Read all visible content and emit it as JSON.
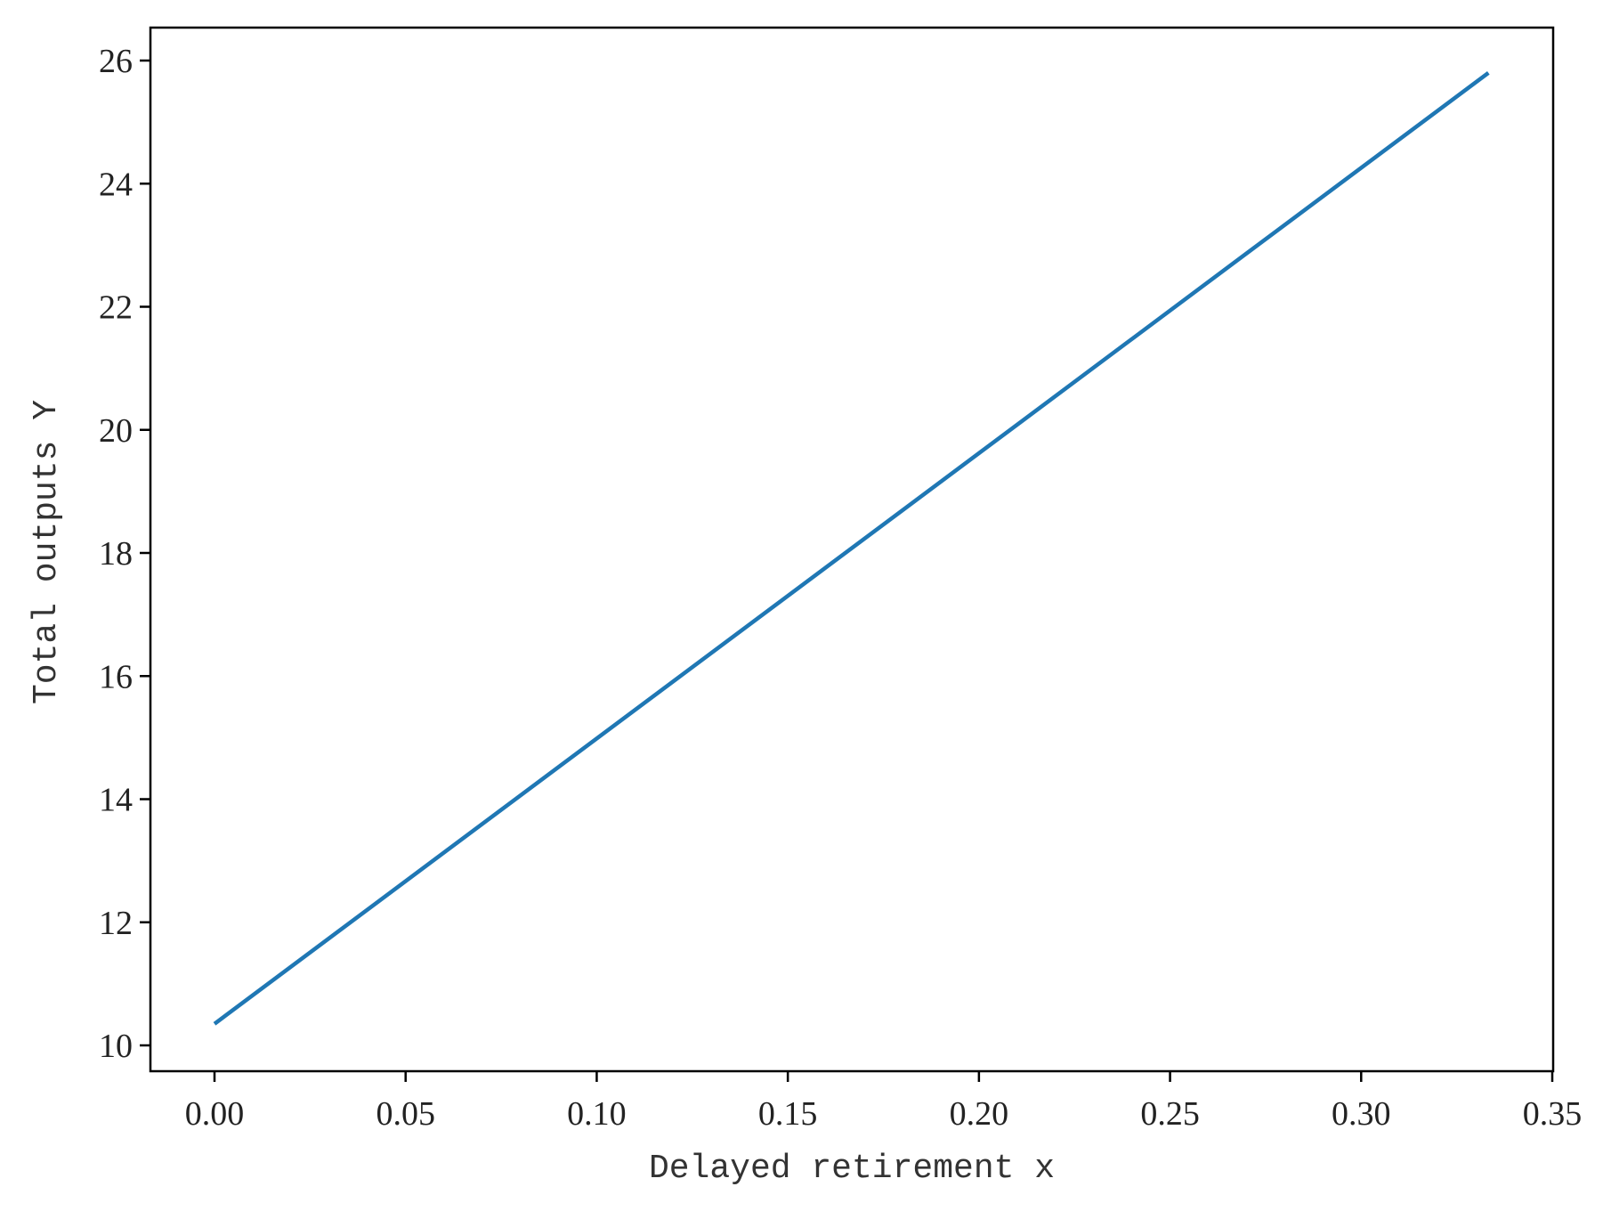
{
  "chart_data": {
    "type": "line",
    "title": "",
    "xlabel": "Delayed retirement x",
    "ylabel": "Total outputs Y",
    "xlim": [
      -0.0167,
      0.35
    ],
    "ylim": [
      9.6,
      26.6
    ],
    "xticks": [
      0.0,
      0.05,
      0.1,
      0.15,
      0.2,
      0.25,
      0.3,
      0.35
    ],
    "xtick_labels": [
      "0.00",
      "0.05",
      "0.10",
      "0.15",
      "0.20",
      "0.25",
      "0.30",
      "0.35"
    ],
    "yticks": [
      10,
      12,
      14,
      16,
      18,
      20,
      22,
      24,
      26
    ],
    "ytick_labels": [
      "10",
      "12",
      "14",
      "16",
      "18",
      "20",
      "22",
      "24",
      "26"
    ],
    "grid": false,
    "series": [
      {
        "color": "#1f77b4",
        "x": [
          0.0,
          0.3333
        ],
        "y": [
          10.35,
          25.8
        ]
      }
    ]
  }
}
